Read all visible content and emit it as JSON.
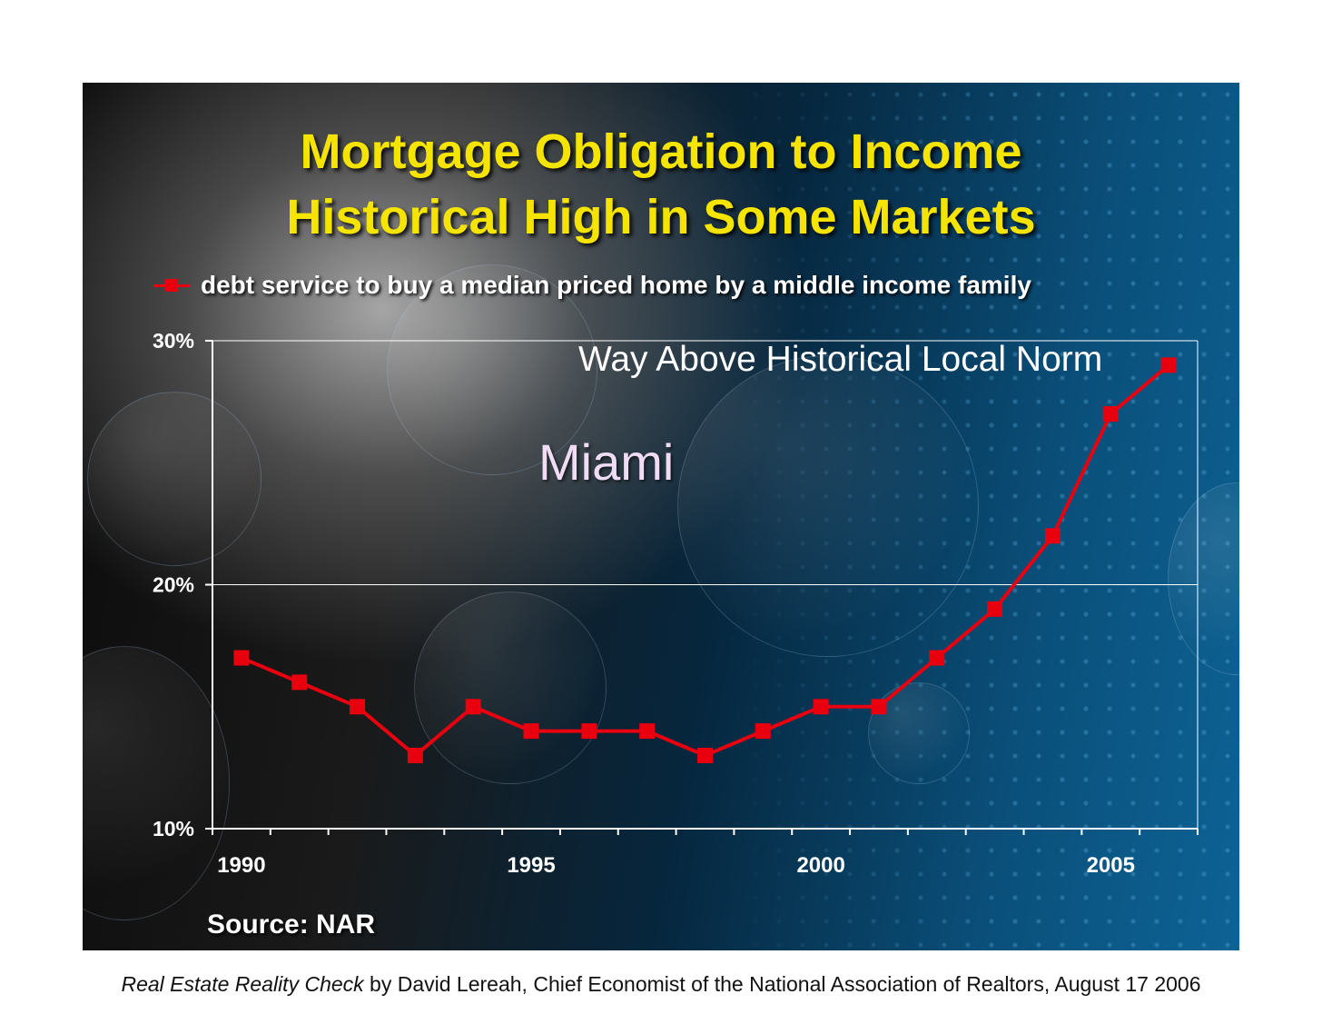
{
  "title": {
    "line1": "Mortgage Obligation to Income",
    "line2": "Historical High in Some Markets"
  },
  "legend": {
    "label": "debt service to buy a median priced home by a middle income family"
  },
  "annotations": {
    "city": "Miami",
    "note": "Way Above Historical Local Norm"
  },
  "source": "Source: NAR",
  "caption": {
    "italic": "Real Estate Reality Check",
    "rest": " by David Lereah, Chief Economist of the National Association of Realtors, August 17 2006"
  },
  "colors": {
    "title": "#f5e400",
    "series": "#e8000f",
    "axis": "#ffffff"
  },
  "chart_data": {
    "type": "line",
    "title": "Mortgage Obligation to Income Historical High in Some Markets",
    "xlabel": "",
    "ylabel": "",
    "x": [
      1990,
      1991,
      1992,
      1993,
      1994,
      1995,
      1996,
      1997,
      1998,
      1999,
      2000,
      2001,
      2002,
      2003,
      2004,
      2005,
      2006
    ],
    "series": [
      {
        "name": "debt service to buy a median priced home by a middle income family",
        "values": [
          17,
          16,
          15,
          13,
          15,
          14,
          14,
          14,
          13,
          14,
          15,
          15,
          17,
          19,
          22,
          27,
          29
        ]
      }
    ],
    "xlim": [
      1990,
      2007
    ],
    "ylim": [
      10,
      30
    ],
    "x_tick_labels": [
      "1990",
      "1995",
      "2000",
      "2005"
    ],
    "x_tick_values": [
      1990,
      1995,
      2000,
      2005
    ],
    "y_tick_labels": [
      "10%",
      "20%",
      "30%"
    ],
    "y_tick_values": [
      10,
      20,
      30
    ],
    "grid": true,
    "legend_position": "top"
  }
}
